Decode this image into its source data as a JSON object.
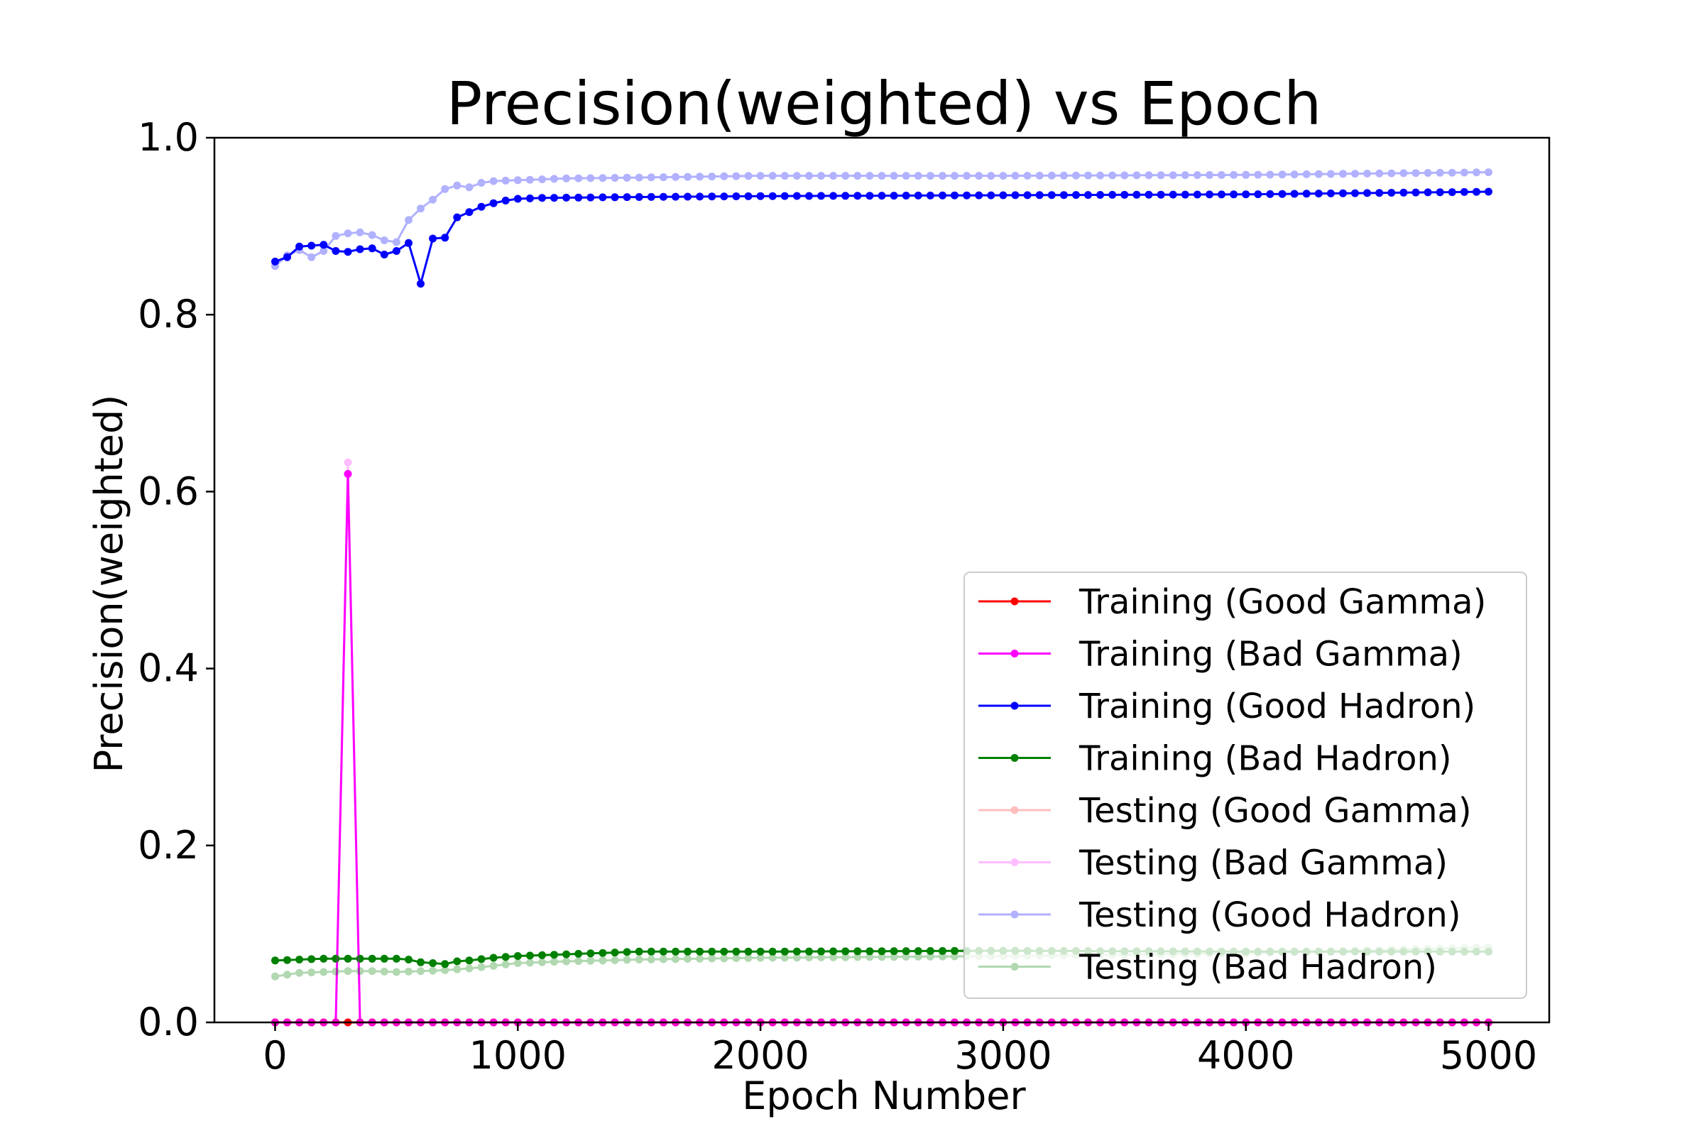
{
  "chart_data": {
    "type": "line",
    "title": "Precision(weighted) vs Epoch",
    "xlabel": "Epoch Number",
    "ylabel": "Precision(weighted)",
    "xlim": [
      -250,
      5250
    ],
    "ylim": [
      0.0,
      1.0
    ],
    "xticks": [
      0,
      1000,
      2000,
      3000,
      4000,
      5000
    ],
    "yticks": [
      0.0,
      0.2,
      0.4,
      0.6,
      0.8,
      1.0
    ],
    "xtick_labels": [
      "0",
      "1000",
      "2000",
      "3000",
      "4000",
      "5000"
    ],
    "ytick_labels": [
      "0.0",
      "0.2",
      "0.4",
      "0.6",
      "0.8",
      "1.0"
    ],
    "grid": false,
    "legend_position": "lower-right",
    "x_sampling": {
      "start": 0,
      "step": 50,
      "end": 5000
    },
    "series": [
      {
        "name": "Training (Good Gamma)",
        "color": "#ff0000",
        "opacity": 1.0,
        "keypoints": [
          [
            0,
            0.0
          ],
          [
            5000,
            0.0
          ]
        ]
      },
      {
        "name": "Training (Bad Gamma)",
        "color": "#ff00ff",
        "opacity": 1.0,
        "keypoints": [
          [
            0,
            0.0
          ],
          [
            250,
            0.0
          ],
          [
            300,
            0.62
          ],
          [
            350,
            0.0
          ],
          [
            5000,
            0.0
          ]
        ]
      },
      {
        "name": "Training (Good Hadron)",
        "color": "#0000ff",
        "opacity": 1.0,
        "keypoints": [
          [
            0,
            0.86
          ],
          [
            50,
            0.865
          ],
          [
            100,
            0.877
          ],
          [
            150,
            0.878
          ],
          [
            200,
            0.879
          ],
          [
            250,
            0.872
          ],
          [
            300,
            0.871
          ],
          [
            350,
            0.874
          ],
          [
            400,
            0.875
          ],
          [
            450,
            0.868
          ],
          [
            500,
            0.872
          ],
          [
            550,
            0.881
          ],
          [
            600,
            0.835
          ],
          [
            650,
            0.886
          ],
          [
            700,
            0.887
          ],
          [
            750,
            0.91
          ],
          [
            800,
            0.916
          ],
          [
            850,
            0.922
          ],
          [
            900,
            0.926
          ],
          [
            950,
            0.929
          ],
          [
            1000,
            0.931
          ],
          [
            1100,
            0.932
          ],
          [
            1500,
            0.933
          ],
          [
            2000,
            0.934
          ],
          [
            3000,
            0.935
          ],
          [
            4000,
            0.936
          ],
          [
            5000,
            0.939
          ]
        ]
      },
      {
        "name": "Training (Bad Hadron)",
        "color": "#008000",
        "opacity": 1.0,
        "keypoints": [
          [
            0,
            0.07
          ],
          [
            100,
            0.071
          ],
          [
            200,
            0.072
          ],
          [
            300,
            0.072
          ],
          [
            400,
            0.072
          ],
          [
            500,
            0.072
          ],
          [
            550,
            0.071
          ],
          [
            600,
            0.068
          ],
          [
            700,
            0.066
          ],
          [
            750,
            0.069
          ],
          [
            800,
            0.07
          ],
          [
            900,
            0.073
          ],
          [
            1000,
            0.075
          ],
          [
            1200,
            0.077
          ],
          [
            1500,
            0.08
          ],
          [
            2000,
            0.08
          ],
          [
            3000,
            0.081
          ],
          [
            4000,
            0.08
          ],
          [
            5000,
            0.08
          ]
        ]
      },
      {
        "name": "Testing (Good Gamma)",
        "color": "#ff0000",
        "opacity": 0.25,
        "keypoints": [
          [
            0,
            0.0
          ],
          [
            5000,
            0.0
          ]
        ]
      },
      {
        "name": "Testing (Bad Gamma)",
        "color": "#ff00ff",
        "opacity": 0.25,
        "keypoints": [
          [
            0,
            0.0
          ],
          [
            250,
            0.0
          ],
          [
            300,
            0.633
          ],
          [
            350,
            0.0
          ],
          [
            5000,
            0.0
          ]
        ]
      },
      {
        "name": "Testing (Good Hadron)",
        "color": "#0000ff",
        "opacity": 0.3,
        "keypoints": [
          [
            0,
            0.855
          ],
          [
            50,
            0.867
          ],
          [
            100,
            0.873
          ],
          [
            150,
            0.865
          ],
          [
            200,
            0.872
          ],
          [
            250,
            0.889
          ],
          [
            300,
            0.892
          ],
          [
            350,
            0.893
          ],
          [
            400,
            0.89
          ],
          [
            450,
            0.884
          ],
          [
            500,
            0.882
          ],
          [
            550,
            0.907
          ],
          [
            600,
            0.92
          ],
          [
            650,
            0.93
          ],
          [
            700,
            0.942
          ],
          [
            750,
            0.946
          ],
          [
            800,
            0.944
          ],
          [
            850,
            0.949
          ],
          [
            900,
            0.951
          ],
          [
            1000,
            0.952
          ],
          [
            1200,
            0.954
          ],
          [
            1500,
            0.955
          ],
          [
            2000,
            0.957
          ],
          [
            3000,
            0.957
          ],
          [
            4000,
            0.958
          ],
          [
            5000,
            0.961
          ]
        ]
      },
      {
        "name": "Testing (Bad Hadron)",
        "color": "#008000",
        "opacity": 0.3,
        "keypoints": [
          [
            0,
            0.052
          ],
          [
            100,
            0.056
          ],
          [
            200,
            0.057
          ],
          [
            300,
            0.058
          ],
          [
            400,
            0.058
          ],
          [
            500,
            0.057
          ],
          [
            600,
            0.058
          ],
          [
            700,
            0.059
          ],
          [
            800,
            0.061
          ],
          [
            900,
            0.064
          ],
          [
            1000,
            0.067
          ],
          [
            1200,
            0.069
          ],
          [
            1500,
            0.071
          ],
          [
            2000,
            0.073
          ],
          [
            3000,
            0.075
          ],
          [
            4000,
            0.078
          ],
          [
            5000,
            0.085
          ]
        ]
      }
    ]
  }
}
